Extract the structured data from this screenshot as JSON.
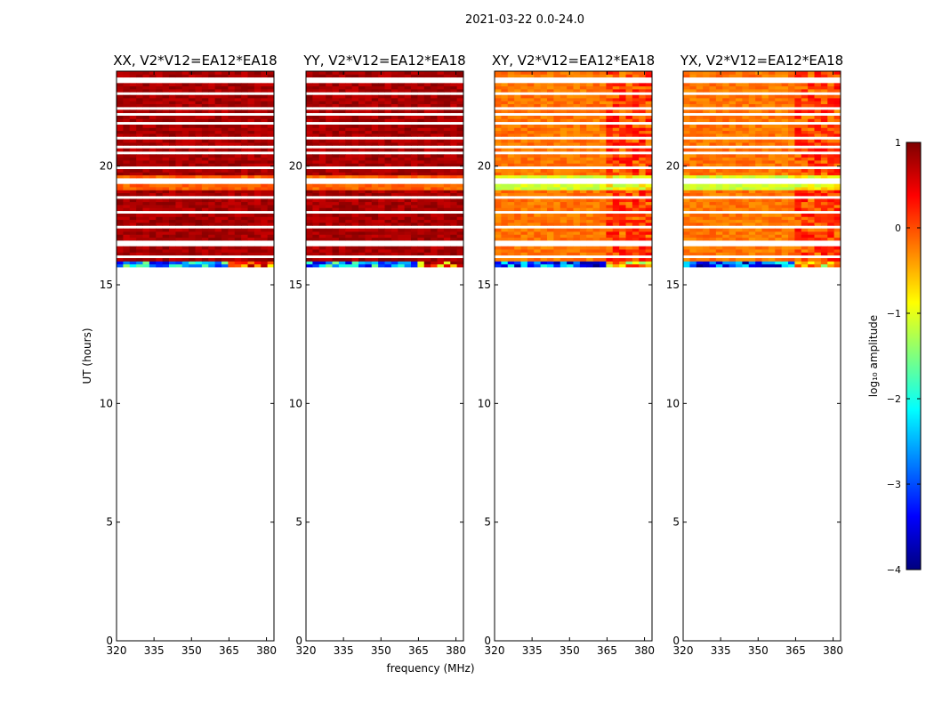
{
  "suptitle": "2021-03-22 0.0-24.0",
  "colors": {
    "jet_stops": [
      "#00007f",
      "#0000ff",
      "#007fff",
      "#00ffff",
      "#7fff7f",
      "#ffff00",
      "#ff7f00",
      "#ff0000",
      "#7f0000"
    ]
  },
  "chart_data": {
    "type": "heatmap",
    "xlabel": "frequency (MHz)",
    "ylabel": "UT (hours)",
    "xlim": [
      320,
      383
    ],
    "ylim": [
      0,
      24
    ],
    "xticks": [
      320,
      335,
      350,
      365,
      380
    ],
    "yticks": [
      0,
      5,
      10,
      15,
      20
    ],
    "data_time_range": [
      15.75,
      24
    ],
    "missing_range": [
      0,
      15.75
    ],
    "panels": [
      {
        "title": "XX, V2*V12=EA12*EA18",
        "typical_log_amplitude": 0.8,
        "lowest_row_log_amplitude": -2.5
      },
      {
        "title": "YY, V2*V12=EA12*EA18",
        "typical_log_amplitude": 0.8,
        "lowest_row_log_amplitude": -2.5
      },
      {
        "title": "XY, V2*V12=EA12*EA18",
        "typical_log_amplitude": -0.2,
        "lowest_row_log_amplitude": -3.0
      },
      {
        "title": "YX, V2*V12=EA12*EA18",
        "typical_log_amplitude": -0.2,
        "lowest_row_log_amplitude": -3.0
      }
    ],
    "colorbar": {
      "label": "log₁₀ amplitude",
      "range": [
        -4,
        1
      ],
      "ticks": [
        "1",
        "0",
        "−1",
        "−2",
        "−3",
        "−4"
      ],
      "colormap": "jet"
    }
  }
}
